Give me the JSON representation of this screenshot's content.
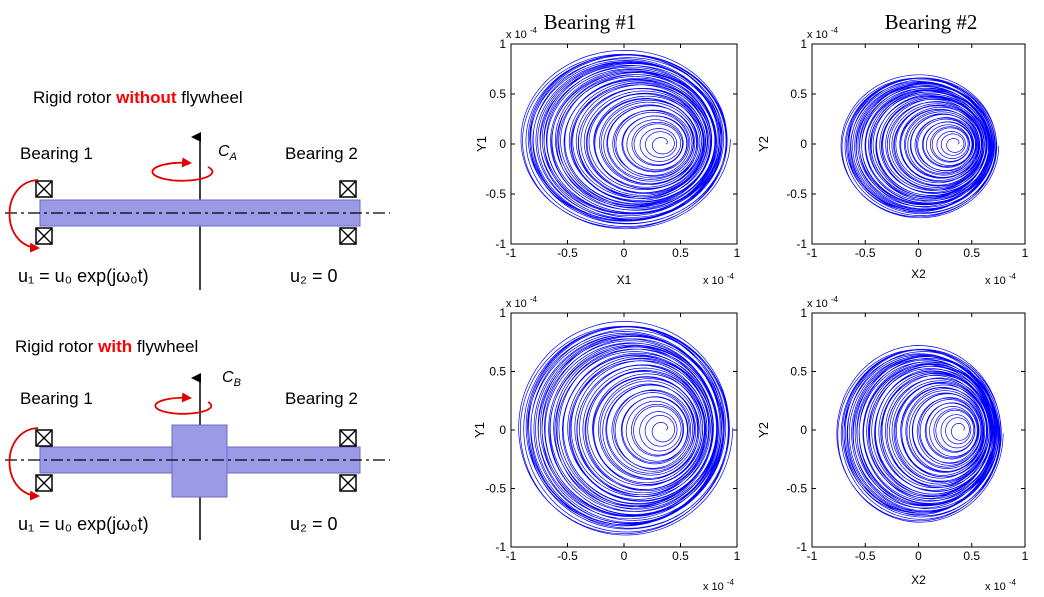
{
  "left": {
    "case_a": {
      "title_prefix": "Rigid rotor ",
      "title_keyword": "without",
      "title_suffix": " flywheel",
      "bearing_left": "Bearing 1",
      "bearing_right": "Bearing 2",
      "torque_symbol": "C",
      "torque_subscript": "A",
      "eq_left": "u₁ = u₀ exp(jω₀t)",
      "eq_right": "u₂ = 0"
    },
    "case_b": {
      "title_prefix": "Rigid rotor ",
      "title_keyword": "with",
      "title_suffix": " flywheel",
      "bearing_left": "Bearing 1",
      "bearing_right": "Bearing 2",
      "torque_symbol": "C",
      "torque_subscript": "B",
      "eq_left": "u₁ = u₀ exp(jω₀t)",
      "eq_right": "u₂ = 0"
    },
    "colors": {
      "keyword": "#ff0000",
      "shaft": "#9a9ae6",
      "arrow": "#e00000"
    }
  },
  "column_titles": [
    "Bearing #1",
    "Bearing #2"
  ],
  "chart_data": [
    {
      "type": "line",
      "name": "orbit-bearing1-without",
      "xlabel": "X1",
      "ylabel": "Y1",
      "xlim": [
        -1,
        1
      ],
      "ylim": [
        -1,
        1
      ],
      "xticks": [
        "-1",
        "-0.5",
        "0",
        "0.5",
        "1"
      ],
      "yticks": [
        "1",
        "0.5",
        "0",
        "-0.5",
        "-1"
      ],
      "scale_x": "x 10",
      "scale_y": "x 10",
      "scale_exp": "-4",
      "orbit": {
        "center_start": [
          0.35,
          0
        ],
        "center_end": [
          0,
          0.05
        ],
        "r_start": 0.02,
        "r_end": 0.9
      }
    },
    {
      "type": "line",
      "name": "orbit-bearing2-without",
      "xlabel": "X2",
      "ylabel": "Y2",
      "xlim": [
        -1,
        1
      ],
      "ylim": [
        -1,
        1
      ],
      "xticks": [
        "-1",
        "-0.5",
        "0",
        "0.5",
        "1"
      ],
      "yticks": [
        "1",
        "0.5",
        "0",
        "-0.5",
        "-1"
      ],
      "scale_x": "x 10",
      "scale_y": "x 10",
      "scale_exp": "-4",
      "orbit": {
        "center_start": [
          0.35,
          0
        ],
        "center_end": [
          0,
          -0.02
        ],
        "r_start": 0.02,
        "r_end": 0.72
      }
    },
    {
      "type": "line",
      "name": "orbit-bearing1-with",
      "xlabel": "",
      "ylabel": "Y1",
      "xlim": [
        -1,
        1
      ],
      "ylim": [
        -1,
        1
      ],
      "xticks": [
        "-1",
        "-0.5",
        "0",
        "0.5",
        "1"
      ],
      "yticks": [
        "1",
        "0.5",
        "0",
        "-0.5",
        "-1"
      ],
      "scale_x": "x 10",
      "scale_y": "x 10",
      "scale_exp": "-4",
      "orbit": {
        "center_start": [
          0.35,
          0
        ],
        "center_end": [
          0,
          0.02
        ],
        "r_start": 0.02,
        "r_end": 0.92
      }
    },
    {
      "type": "line",
      "name": "orbit-bearing2-with",
      "xlabel": "X2",
      "ylabel": "Y2",
      "xlim": [
        -1,
        1
      ],
      "ylim": [
        -1,
        1
      ],
      "xticks": [
        "-1",
        "-0.5",
        "0",
        "0.5",
        "1"
      ],
      "yticks": [
        "1",
        "0.5",
        "0",
        "-0.5",
        "-1"
      ],
      "scale_x": "x 10",
      "scale_y": "x 10",
      "scale_exp": "-4",
      "orbit": {
        "center_start": [
          0.4,
          0
        ],
        "center_end": [
          0,
          -0.03
        ],
        "r_start": 0.02,
        "r_end": 0.76
      }
    }
  ],
  "series_color": "#0000ff"
}
